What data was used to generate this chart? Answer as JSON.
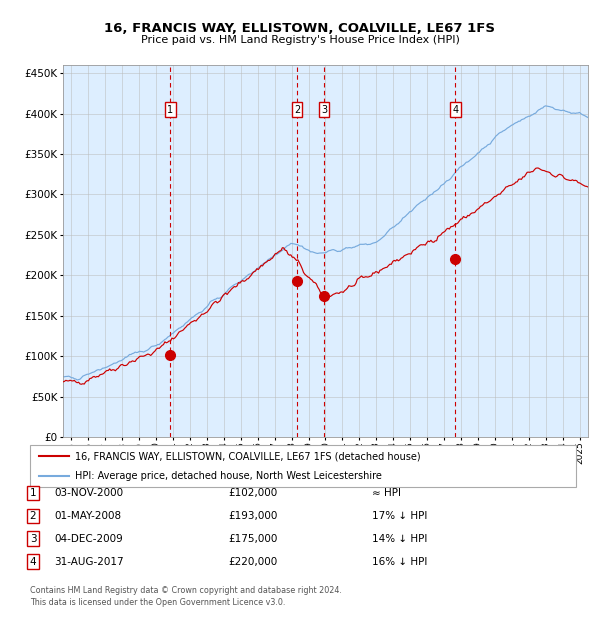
{
  "title": "16, FRANCIS WAY, ELLISTOWN, COALVILLE, LE67 1FS",
  "subtitle": "Price paid vs. HM Land Registry's House Price Index (HPI)",
  "legend_line1": "16, FRANCIS WAY, ELLISTOWN, COALVILLE, LE67 1FS (detached house)",
  "legend_line2": "HPI: Average price, detached house, North West Leicestershire",
  "footer1": "Contains HM Land Registry data © Crown copyright and database right 2024.",
  "footer2": "This data is licensed under the Open Government Licence v3.0.",
  "transactions": [
    {
      "num": 1,
      "date": "03-NOV-2000",
      "price": "£102,000",
      "rel": "≈ HPI",
      "x_year": 2000.84,
      "marker_y": 102000
    },
    {
      "num": 2,
      "date": "01-MAY-2008",
      "price": "£193,000",
      "rel": "17% ↓ HPI",
      "x_year": 2008.33,
      "marker_y": 193000
    },
    {
      "num": 3,
      "date": "04-DEC-2009",
      "price": "£175,000",
      "rel": "14% ↓ HPI",
      "x_year": 2009.92,
      "marker_y": 175000
    },
    {
      "num": 4,
      "date": "31-AUG-2017",
      "price": "£220,000",
      "rel": "16% ↓ HPI",
      "x_year": 2017.67,
      "marker_y": 220000
    }
  ],
  "red_color": "#cc0000",
  "blue_color": "#77aadd",
  "bg_color": "#ddeeff",
  "grid_color": "#aaaaaa",
  "vline_color": "#cc0000",
  "box_color": "#cc0000",
  "ylim": [
    0,
    460000
  ],
  "xlim_start": 1994.5,
  "xlim_end": 2025.5,
  "yticks": [
    0,
    50000,
    100000,
    150000,
    200000,
    250000,
    300000,
    350000,
    400000,
    450000
  ]
}
